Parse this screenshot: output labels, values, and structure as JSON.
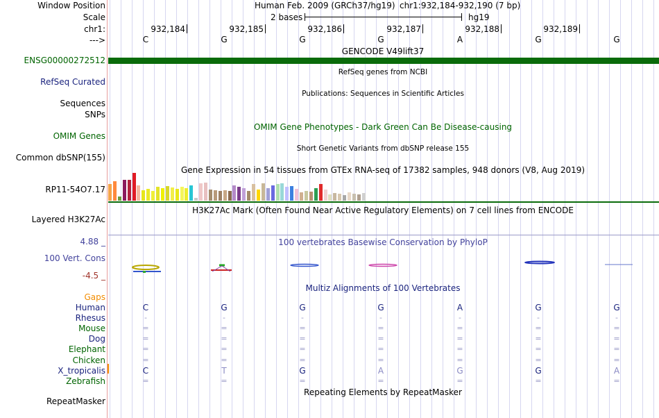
{
  "colors": {
    "navy": "#1a237e",
    "dark_green": "#006400",
    "gene_bar": "#0a6b0a",
    "cons_blue": "#42429c",
    "cons_red": "#a0332a",
    "gaps_orange": "#f28c00",
    "separator": "#e79c9c",
    "grid_line": "#d6d6f0",
    "align_gray": "#8a8ac4"
  },
  "labels": {
    "window_position": "Window Position",
    "scale": "Scale",
    "chr": "chr1:",
    "arrow": "--->",
    "gene_id": "ENSG00000272512",
    "refseq": "RefSeq Curated",
    "sequences": "Sequences",
    "snps": "SNPs",
    "omim": "OMIM Genes",
    "dbsnp": "Common dbSNP(155)",
    "gtex_gene": "RP11-54O7.17",
    "h3k27ac": "Layered H3K27Ac",
    "cons_max": "4.88 _",
    "cons_name": "100 Vert. Cons",
    "cons_min": "-4.5 _",
    "gaps": "Gaps",
    "repeatmasker": "RepeatMasker"
  },
  "header": {
    "assembly": "Human Feb. 2009 (GRCh37/hg19)",
    "position": "chr1:932,184-932,190 (7 bp)",
    "scale_text": "2 bases",
    "db": "hg19"
  },
  "ruler": [
    "932,184",
    "932,185",
    "932,186",
    "932,187",
    "932,188",
    "932,189"
  ],
  "track_titles": {
    "gencode": "GENCODE V49lift37",
    "refseq": "RefSeq genes from NCBI",
    "publications": "Publications: Sequences in Scientific Articles",
    "omim": "OMIM Gene Phenotypes - Dark Green Can Be Disease-causing",
    "dbsnp": "Short Genetic Variants from dbSNP release 155",
    "gtex": "Gene Expression in 54 tissues from GTEx RNA-seq of 17382 samples, 948 donors (V8, Aug 2019)",
    "h3k27ac": "H3K27Ac Mark (Often Found Near Active Regulatory Elements) on 7 cell lines from ENCODE",
    "phylop": "100 vertebrates Basewise Conservation by PhyloP",
    "multiz": "Multiz Alignments of 100 Vertebrates",
    "repeatmasker": "Repeating Elements by RepeatMasker"
  },
  "sequence": [
    "C",
    "G",
    "G",
    "G",
    "A",
    "G",
    "G"
  ],
  "species": [
    {
      "name": "Human",
      "color": "#1a237e",
      "cells": [
        "C",
        "G",
        "G",
        "G",
        "A",
        "G",
        "G"
      ]
    },
    {
      "name": "Rhesus",
      "color": "#1a237e",
      "cells": [
        "-",
        "-",
        "-",
        "-",
        "-",
        "-",
        "-"
      ]
    },
    {
      "name": "Mouse",
      "color": "#006400",
      "cells": [
        "=",
        "=",
        "=",
        "=",
        "=",
        "=",
        "="
      ]
    },
    {
      "name": "Dog",
      "color": "#1a237e",
      "cells": [
        "=",
        "=",
        "=",
        "=",
        "=",
        "=",
        "="
      ]
    },
    {
      "name": "Elephant",
      "color": "#006400",
      "cells": [
        "=",
        "=",
        "=",
        "=",
        "=",
        "=",
        "="
      ]
    },
    {
      "name": "Chicken",
      "color": "#006400",
      "cells": [
        "=",
        "=",
        "=",
        "=",
        "=",
        "=",
        "="
      ]
    },
    {
      "name": "X_tropicalis",
      "color": "#1a237e",
      "cells": [
        "C",
        "T",
        "G",
        "A",
        "G",
        "G",
        "A"
      ]
    },
    {
      "name": "Zebrafish",
      "color": "#006400",
      "cells": [
        "=",
        "=",
        "=",
        "=",
        "=",
        "=",
        "="
      ]
    }
  ],
  "gtex_colors": [
    "#f5a54a",
    "#ff8a3d",
    "#6e9b3d",
    "#8b1a5e",
    "#b2213c",
    "#e01b24",
    "#f4b8a0",
    "#e6e61a",
    "#eaea28",
    "#efef3a",
    "#e3e32a",
    "#f0f000",
    "#d8d82a",
    "#f2ee4a",
    "#e8e81a",
    "#f5f55a",
    "#eded2e",
    "#28c6d4",
    "#c8c8c8",
    "#f0c8c8",
    "#e8c0c0",
    "#a48c6c",
    "#b89a7a",
    "#9c8064",
    "#c8a886",
    "#8a6a4e",
    "#b48ac8",
    "#7a3c8a",
    "#c0a0d8",
    "#a48a6a",
    "#d8c0a0",
    "#ffd700",
    "#c8b898",
    "#a0a0d8",
    "#6a6ae0",
    "#b0e0b0",
    "#98d8d8",
    "#c0c0ff",
    "#3c80e0",
    "#f0c0d8",
    "#d0b090",
    "#c8c8a0",
    "#b89070",
    "#2e9e52",
    "#e02a2a",
    "#f0d0d0",
    "#e0e0c0",
    "#c8b8a0",
    "#d8c8b0",
    "#a8a8a8",
    "#e8d8c8",
    "#c8c0b0",
    "#b0a090",
    "#d0d0d0"
  ],
  "gtex_values": [
    24,
    28,
    6,
    30,
    30,
    40,
    22,
    15,
    17,
    14,
    20,
    18,
    21,
    19,
    17,
    20,
    18,
    22,
    4,
    25,
    26,
    16,
    15,
    14,
    15,
    14,
    22,
    20,
    18,
    14,
    24,
    16,
    25,
    18,
    22,
    24,
    25,
    20,
    21,
    17,
    12,
    14,
    13,
    18,
    24,
    16,
    9,
    11,
    10,
    8,
    12,
    10,
    9,
    11
  ]
}
